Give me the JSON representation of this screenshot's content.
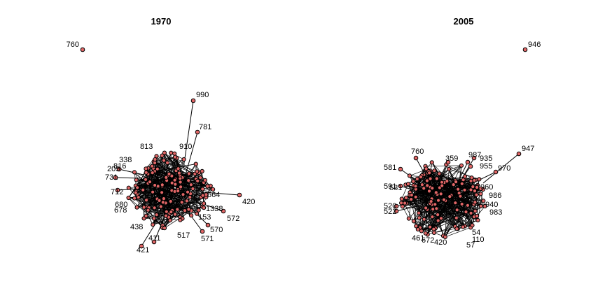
{
  "panels": [
    {
      "title": "1970",
      "isolate_label": "760",
      "outer_labels": [
        "990",
        "781",
        "420",
        "572",
        "570",
        "571",
        "411",
        "421",
        "712",
        "731",
        "205",
        "816",
        "813",
        "338",
        "680",
        "678",
        "438",
        "910",
        "153",
        "1338",
        "664",
        "517"
      ]
    },
    {
      "title": "2005",
      "isolate_label": "946",
      "outer_labels": [
        "947",
        "970",
        "760",
        "581",
        "591",
        "520",
        "522",
        "987",
        "935",
        "955",
        "359",
        "986",
        "983",
        "940",
        "960",
        "54",
        "57",
        "420",
        "672",
        "461",
        "110",
        "581"
      ]
    }
  ],
  "colors": {
    "node_fill": "#e06666",
    "node_stroke": "#000000",
    "edge": "#000000"
  }
}
